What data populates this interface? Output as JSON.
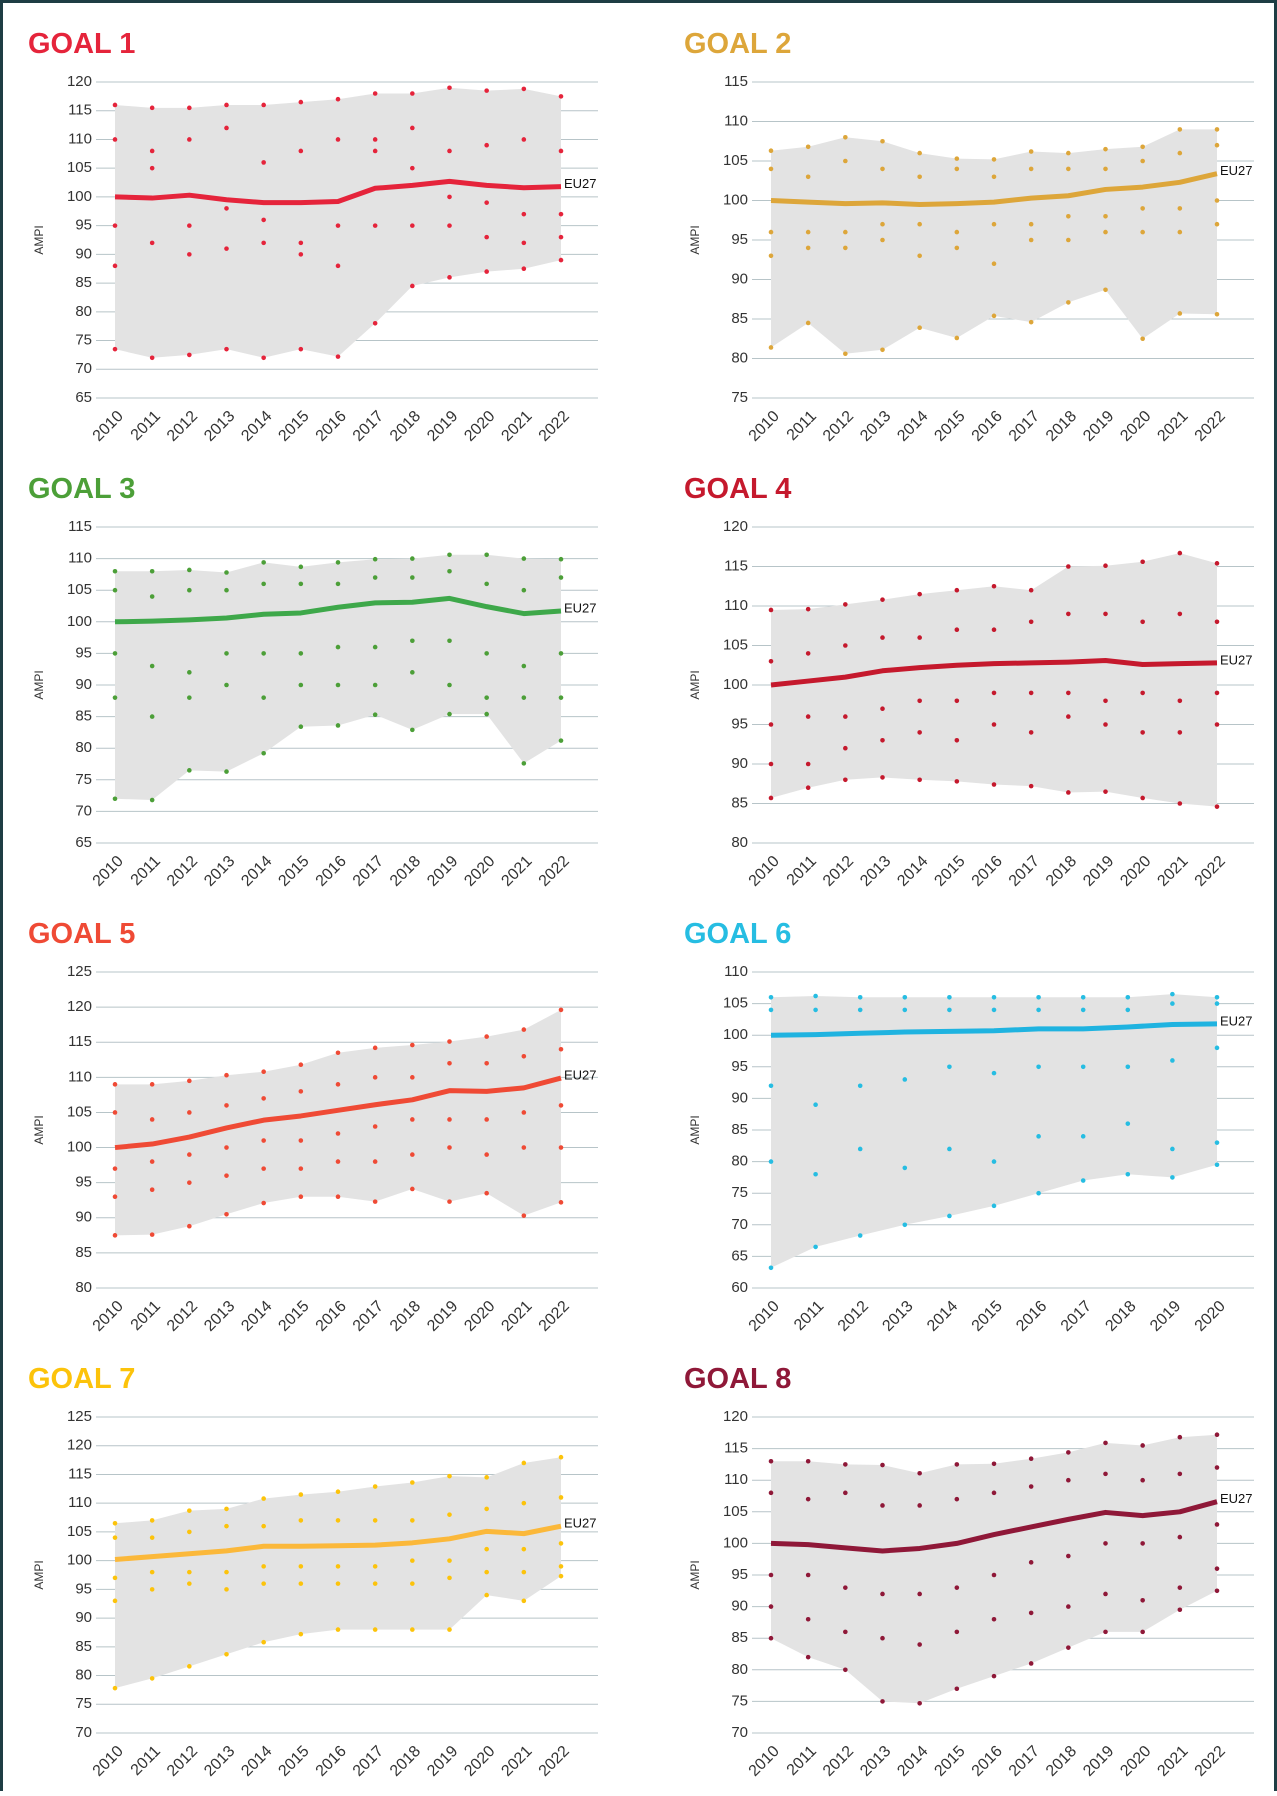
{
  "chart_data": [
    {
      "type": "line",
      "title": "GOAL 1",
      "y_label": "AMPI",
      "color": "#e5243b",
      "categories": [
        "2010",
        "2011",
        "2012",
        "2013",
        "2014",
        "2015",
        "2016",
        "2017",
        "2018",
        "2019",
        "2020",
        "2021",
        "2022"
      ],
      "ylim": [
        65,
        120
      ],
      "yticks": [
        65,
        70,
        75,
        80,
        85,
        90,
        95,
        100,
        105,
        110,
        115,
        120
      ],
      "series": [
        {
          "name": "EU27",
          "color": "#e5243b",
          "values": [
            100,
            99.8,
            100.3,
            99.5,
            99,
            99,
            99.2,
            101.5,
            102,
            102.7,
            102,
            101.6,
            101.8
          ]
        }
      ],
      "band": {
        "max": [
          116,
          115.5,
          115.5,
          116,
          116,
          116.5,
          117,
          118,
          118,
          119,
          118.5,
          118.8,
          117.5
        ],
        "min": [
          73.5,
          72,
          72.5,
          73.5,
          72,
          73.5,
          72.2,
          78,
          84.5,
          86,
          87,
          87.5,
          89
        ]
      },
      "points": [
        [
          110,
          95,
          88
        ],
        [
          108,
          92,
          105
        ],
        [
          110,
          90,
          95
        ],
        [
          112,
          91,
          98
        ],
        [
          106,
          92,
          96
        ],
        [
          108,
          92,
          90
        ],
        [
          110,
          95,
          88
        ],
        [
          110,
          95,
          108
        ],
        [
          112,
          95,
          105
        ],
        [
          108,
          95,
          100
        ],
        [
          109,
          93,
          99
        ],
        [
          110,
          97,
          92
        ],
        [
          108,
          97,
          93
        ]
      ]
    },
    {
      "type": "line",
      "title": "GOAL 2",
      "y_label": "AMPI",
      "color": "#dda63a",
      "categories": [
        "2010",
        "2011",
        "2012",
        "2013",
        "2014",
        "2015",
        "2016",
        "2017",
        "2018",
        "2019",
        "2020",
        "2021",
        "2022"
      ],
      "ylim": [
        75,
        115
      ],
      "yticks": [
        75,
        80,
        85,
        90,
        95,
        100,
        105,
        110,
        115
      ],
      "series": [
        {
          "name": "EU27",
          "color": "#dda63a",
          "values": [
            100,
            99.8,
            99.6,
            99.7,
            99.5,
            99.6,
            99.8,
            100.3,
            100.6,
            101.4,
            101.7,
            102.3,
            103.4
          ]
        }
      ],
      "band": {
        "max": [
          106.3,
          106.8,
          108,
          107.5,
          106,
          105.3,
          105.2,
          106.2,
          106,
          106.5,
          106.8,
          109,
          109
        ],
        "min": [
          81.4,
          84.5,
          80.6,
          81.1,
          83.9,
          82.6,
          85.4,
          84.6,
          87.1,
          88.7,
          82.5,
          85.7,
          85.6
        ]
      },
      "points": [
        [
          104,
          96,
          93
        ],
        [
          103,
          96,
          94
        ],
        [
          105,
          96,
          94
        ],
        [
          104,
          97,
          95
        ],
        [
          103,
          97,
          93
        ],
        [
          104,
          96,
          94
        ],
        [
          103,
          97,
          92
        ],
        [
          104,
          97,
          95
        ],
        [
          104,
          98,
          95
        ],
        [
          104,
          98,
          96
        ],
        [
          105,
          99,
          96
        ],
        [
          106,
          99,
          96
        ],
        [
          107,
          100,
          97
        ]
      ]
    },
    {
      "type": "line",
      "title": "GOAL 3",
      "y_label": "AMPI",
      "color": "#4c9f38",
      "categories": [
        "2010",
        "2011",
        "2012",
        "2013",
        "2014",
        "2015",
        "2016",
        "2017",
        "2018",
        "2019",
        "2020",
        "2021",
        "2022"
      ],
      "ylim": [
        65,
        115
      ],
      "yticks": [
        65,
        70,
        75,
        80,
        85,
        90,
        95,
        100,
        105,
        110,
        115
      ],
      "series": [
        {
          "name": "EU27",
          "color": "#3ea84a",
          "values": [
            100,
            100.1,
            100.3,
            100.6,
            101.2,
            101.4,
            102.3,
            103,
            103.1,
            103.7,
            102.4,
            101.3,
            101.7
          ]
        }
      ],
      "band": {
        "max": [
          108,
          108,
          108.2,
          107.8,
          109.4,
          108.7,
          109.4,
          109.9,
          110,
          110.6,
          110.6,
          110,
          109.9
        ],
        "min": [
          72,
          71.8,
          76.5,
          76.3,
          79.2,
          83.4,
          83.6,
          85.3,
          82.9,
          85.4,
          85.4,
          77.6,
          81.2
        ]
      },
      "points": [
        [
          105,
          95,
          88
        ],
        [
          104,
          93,
          85
        ],
        [
          105,
          92,
          88
        ],
        [
          105,
          95,
          90
        ],
        [
          106,
          95,
          88
        ],
        [
          106,
          95,
          90
        ],
        [
          106,
          96,
          90
        ],
        [
          107,
          96,
          90
        ],
        [
          107,
          97,
          92
        ],
        [
          108,
          97,
          90
        ],
        [
          106,
          95,
          88
        ],
        [
          105,
          93,
          88
        ],
        [
          107,
          95,
          88
        ]
      ]
    },
    {
      "type": "line",
      "title": "GOAL 4",
      "y_label": "AMPI",
      "color": "#c5192d",
      "categories": [
        "2010",
        "2011",
        "2012",
        "2013",
        "2014",
        "2015",
        "2016",
        "2017",
        "2018",
        "2019",
        "2020",
        "2021",
        "2022"
      ],
      "ylim": [
        80,
        120
      ],
      "yticks": [
        80,
        85,
        90,
        95,
        100,
        105,
        110,
        115,
        120
      ],
      "series": [
        {
          "name": "EU27",
          "color": "#c5192d",
          "values": [
            100,
            100.5,
            101,
            101.8,
            102.2,
            102.5,
            102.7,
            102.8,
            102.9,
            103.1,
            102.6,
            102.7,
            102.8
          ]
        }
      ],
      "band": {
        "max": [
          109.5,
          109.6,
          110.2,
          110.8,
          111.5,
          112,
          112.5,
          112,
          115,
          115.1,
          115.6,
          116.7,
          115.4
        ],
        "min": [
          85.7,
          87,
          88,
          88.3,
          88,
          87.8,
          87.4,
          87.2,
          86.4,
          86.5,
          85.7,
          85,
          84.6
        ]
      },
      "points": [
        [
          103,
          95,
          90
        ],
        [
          104,
          96,
          90
        ],
        [
          105,
          96,
          92
        ],
        [
          106,
          97,
          93
        ],
        [
          106,
          98,
          94
        ],
        [
          107,
          98,
          93
        ],
        [
          107,
          99,
          95
        ],
        [
          108,
          99,
          94
        ],
        [
          109,
          99,
          96
        ],
        [
          109,
          98,
          95
        ],
        [
          108,
          99,
          94
        ],
        [
          109,
          98,
          94
        ],
        [
          108,
          99,
          95
        ]
      ]
    },
    {
      "type": "line",
      "title": "GOAL 5",
      "y_label": "AMPI",
      "color": "#ef4a35",
      "categories": [
        "2010",
        "2011",
        "2012",
        "2013",
        "2014",
        "2015",
        "2016",
        "2017",
        "2018",
        "2019",
        "2020",
        "2021",
        "2022"
      ],
      "ylim": [
        80,
        125
      ],
      "yticks": [
        80,
        85,
        90,
        95,
        100,
        105,
        110,
        115,
        120,
        125
      ],
      "series": [
        {
          "name": "EU27",
          "color": "#ef4a35",
          "values": [
            100,
            100.5,
            101.5,
            102.8,
            103.9,
            104.5,
            105.3,
            106.1,
            106.8,
            108.1,
            108,
            108.5,
            109.9
          ]
        }
      ],
      "band": {
        "max": [
          109,
          109,
          109.5,
          110.3,
          110.8,
          111.8,
          113.5,
          114.2,
          114.6,
          115.1,
          115.8,
          116.8,
          119.6
        ],
        "min": [
          87.5,
          87.6,
          88.8,
          90.5,
          92.1,
          93,
          93,
          92.3,
          94.1,
          92.3,
          93.5,
          90.3,
          92.2
        ]
      },
      "points": [
        [
          105,
          97,
          93
        ],
        [
          104,
          98,
          94
        ],
        [
          105,
          99,
          95
        ],
        [
          106,
          100,
          96
        ],
        [
          107,
          101,
          97
        ],
        [
          108,
          101,
          97
        ],
        [
          109,
          102,
          98
        ],
        [
          110,
          103,
          98
        ],
        [
          110,
          104,
          99
        ],
        [
          112,
          104,
          100
        ],
        [
          112,
          104,
          99
        ],
        [
          113,
          105,
          100
        ],
        [
          114,
          106,
          100
        ]
      ]
    },
    {
      "type": "line",
      "title": "GOAL 6",
      "y_label": "AMPI",
      "color": "#26bde2",
      "categories": [
        "2010",
        "2011",
        "2012",
        "2013",
        "2014",
        "2015",
        "2016",
        "2017",
        "2018",
        "2019",
        "2020"
      ],
      "ylim": [
        60,
        110
      ],
      "yticks": [
        60,
        65,
        70,
        75,
        80,
        85,
        90,
        95,
        100,
        105,
        110
      ],
      "series": [
        {
          "name": "EU27",
          "color": "#1fb3e0",
          "values": [
            100,
            100.1,
            100.3,
            100.5,
            100.6,
            100.7,
            101,
            101,
            101.3,
            101.7,
            101.8
          ]
        }
      ],
      "band": {
        "max": [
          106,
          106.2,
          106,
          106,
          106,
          106,
          106,
          106,
          106,
          106.5,
          106
        ],
        "min": [
          63.2,
          66.5,
          68.3,
          70,
          71.4,
          73,
          75,
          77,
          78,
          77.5,
          79.5
        ]
      },
      "points": [
        [
          104,
          92,
          80
        ],
        [
          104,
          89,
          78
        ],
        [
          104,
          92,
          82
        ],
        [
          104,
          93,
          79
        ],
        [
          104,
          95,
          82
        ],
        [
          104,
          94,
          80
        ],
        [
          104,
          95,
          84
        ],
        [
          104,
          95,
          84
        ],
        [
          104,
          95,
          86
        ],
        [
          105,
          96,
          82
        ],
        [
          105,
          98,
          83
        ]
      ]
    },
    {
      "type": "line",
      "title": "GOAL 7",
      "y_label": "AMPI",
      "color": "#fcc30b",
      "categories": [
        "2010",
        "2011",
        "2012",
        "2013",
        "2014",
        "2015",
        "2016",
        "2017",
        "2018",
        "2019",
        "2020",
        "2021",
        "2022"
      ],
      "ylim": [
        70,
        125
      ],
      "yticks": [
        70,
        75,
        80,
        85,
        90,
        95,
        100,
        105,
        110,
        115,
        120,
        125
      ],
      "series": [
        {
          "name": "EU27",
          "color": "#fbb83a",
          "values": [
            100.2,
            100.7,
            101.2,
            101.7,
            102.5,
            102.5,
            102.6,
            102.7,
            103.1,
            103.8,
            105.1,
            104.7,
            106
          ]
        }
      ],
      "band": {
        "max": [
          106.5,
          107,
          108.7,
          109,
          110.8,
          111.5,
          112,
          112.9,
          113.6,
          114.7,
          114.5,
          117,
          118
        ],
        "min": [
          77.8,
          79.5,
          81.6,
          83.7,
          85.8,
          87.2,
          88,
          88,
          88,
          88,
          94,
          93,
          97.3
        ]
      },
      "points": [
        [
          104,
          97,
          93
        ],
        [
          104,
          98,
          95
        ],
        [
          105,
          98,
          96
        ],
        [
          106,
          98,
          95
        ],
        [
          106,
          99,
          96
        ],
        [
          107,
          99,
          96
        ],
        [
          107,
          99,
          96
        ],
        [
          107,
          99,
          96
        ],
        [
          107,
          100,
          96
        ],
        [
          108,
          100,
          97
        ],
        [
          109,
          102,
          98
        ],
        [
          110,
          102,
          98
        ],
        [
          111,
          103,
          99
        ]
      ]
    },
    {
      "type": "line",
      "title": "GOAL 8",
      "y_label": "AMPI",
      "color": "#8f1838",
      "categories": [
        "2010",
        "2011",
        "2012",
        "2013",
        "2014",
        "2015",
        "2016",
        "2017",
        "2018",
        "2019",
        "2020",
        "2021",
        "2022"
      ],
      "ylim": [
        70,
        120
      ],
      "yticks": [
        70,
        75,
        80,
        85,
        90,
        95,
        100,
        105,
        110,
        115,
        120
      ],
      "series": [
        {
          "name": "EU27",
          "color": "#8f1838",
          "values": [
            100,
            99.8,
            99.3,
            98.8,
            99.2,
            100,
            101.4,
            102.6,
            103.8,
            104.9,
            104.4,
            105,
            106.6
          ]
        }
      ],
      "band": {
        "max": [
          113,
          113,
          112.5,
          112.4,
          111.1,
          112.5,
          112.6,
          113.4,
          114.4,
          115.9,
          115.5,
          116.8,
          117.2
        ],
        "min": [
          85,
          82,
          80,
          75,
          74.7,
          77,
          79,
          81,
          83.5,
          86,
          86,
          89.5,
          92.5
        ]
      },
      "points": [
        [
          108,
          95,
          90
        ],
        [
          107,
          95,
          88
        ],
        [
          108,
          93,
          86
        ],
        [
          106,
          92,
          85
        ],
        [
          106,
          92,
          84
        ],
        [
          107,
          93,
          86
        ],
        [
          108,
          95,
          88
        ],
        [
          109,
          97,
          89
        ],
        [
          110,
          98,
          90
        ],
        [
          111,
          100,
          92
        ],
        [
          110,
          100,
          91
        ],
        [
          111,
          101,
          93
        ],
        [
          112,
          103,
          96
        ]
      ]
    }
  ]
}
